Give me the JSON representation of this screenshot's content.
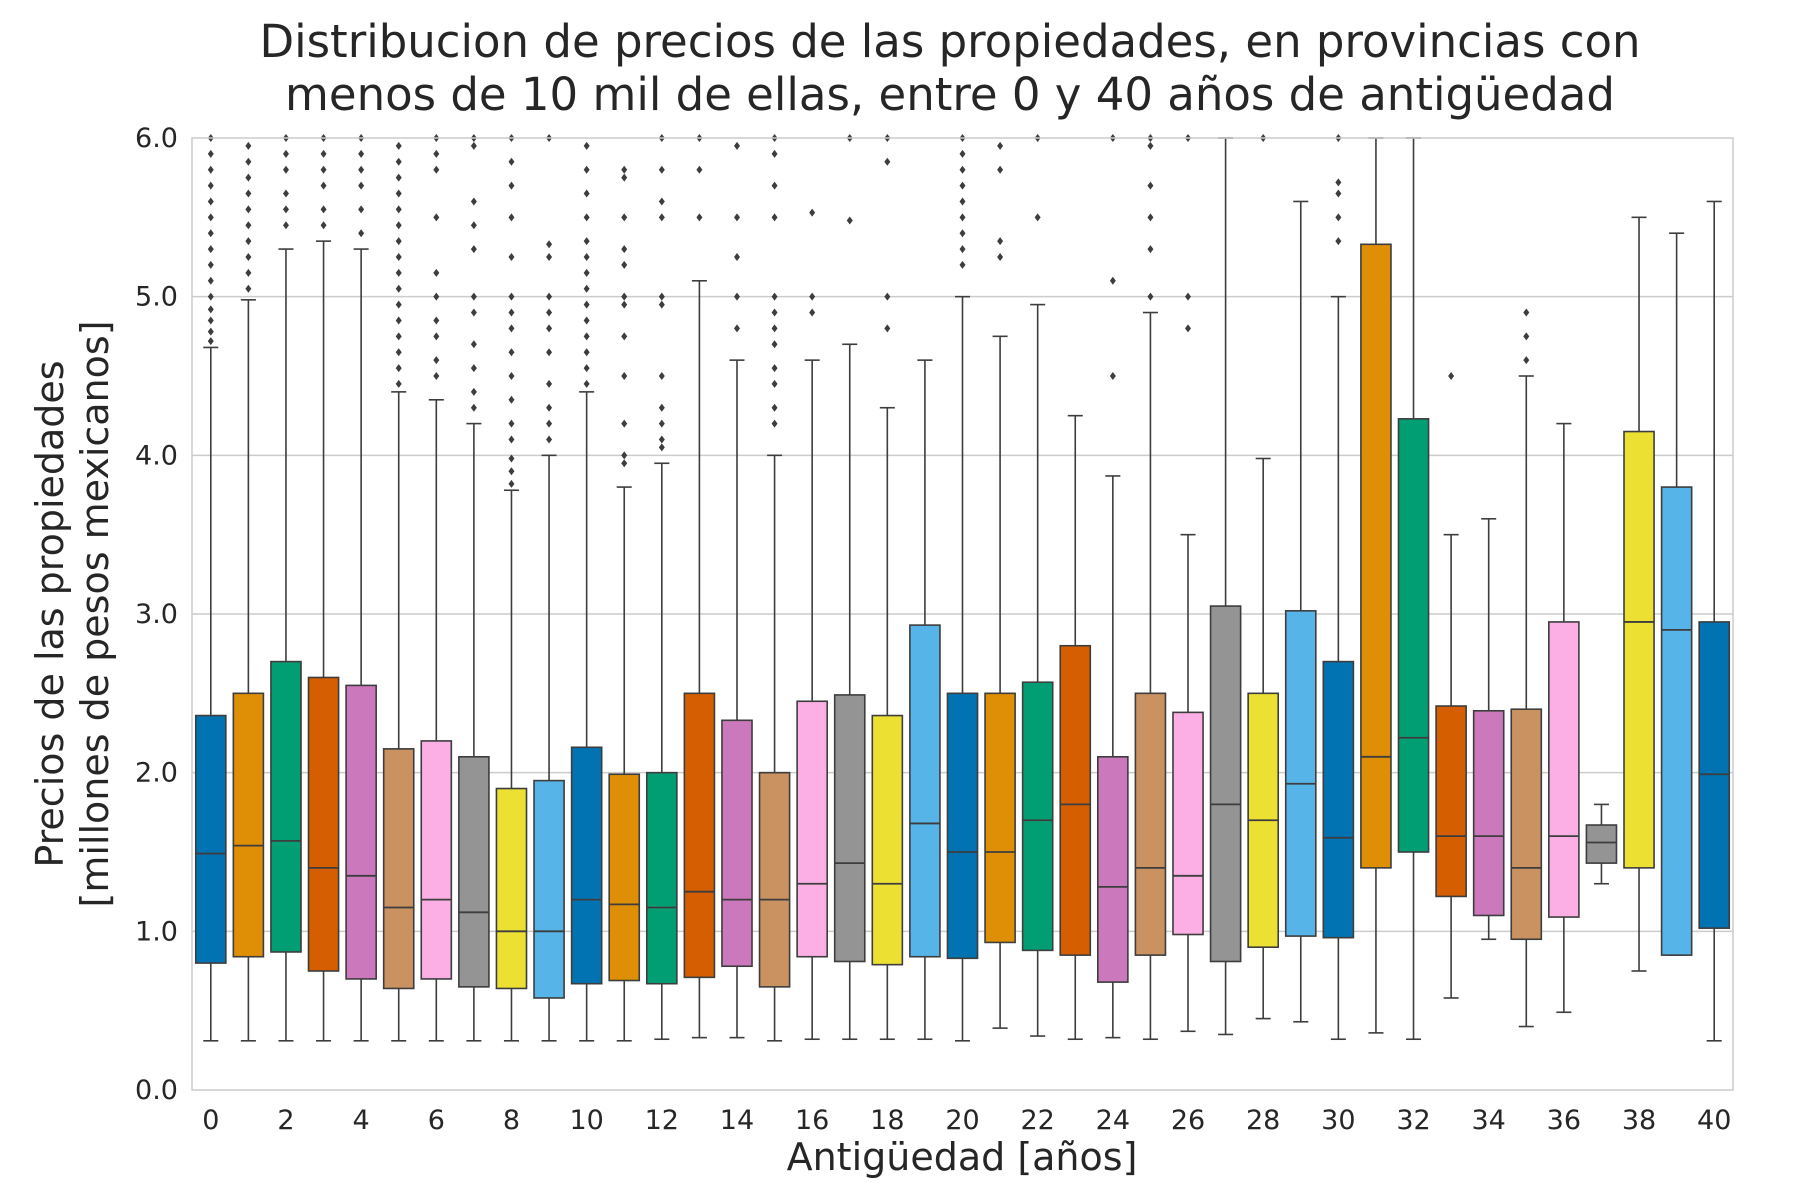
{
  "chart_data": {
    "type": "box",
    "title_lines": [
      "Distribucion de precios de las propiedades, en provincias con",
      "menos de 10 mil de ellas, entre 0 y 40 años de antigüedad"
    ],
    "xlabel": "Antigüedad [años]",
    "ylabel_lines": [
      "Precios de las propiedades",
      "[millones de pesos mexicanos]"
    ],
    "ylim": [
      0,
      6
    ],
    "yticks": [
      "0.0",
      "1.0",
      "2.0",
      "3.0",
      "4.0",
      "5.0",
      "6.0"
    ],
    "ytick_values": [
      0,
      1,
      2,
      3,
      4,
      5,
      6
    ],
    "xtick_labels": [
      "0",
      "2",
      "4",
      "6",
      "8",
      "10",
      "12",
      "14",
      "16",
      "18",
      "20",
      "22",
      "24",
      "26",
      "28",
      "30",
      "32",
      "34",
      "36",
      "38",
      "40"
    ],
    "grid": "horizontal",
    "palette": [
      "#0173b2",
      "#de8f05",
      "#029e73",
      "#d55e00",
      "#cc78bc",
      "#ca9161",
      "#fbafe4",
      "#949494",
      "#ece133",
      "#56b4e9"
    ],
    "boxes": [
      {
        "age": 0,
        "whislo": 0.31,
        "q1": 0.8,
        "med": 1.49,
        "q3": 2.36,
        "whishi": 4.68,
        "fliers": [
          4.72,
          4.78,
          4.85,
          4.92,
          5.0,
          5.1,
          5.2,
          5.3,
          5.4,
          5.5,
          5.6,
          5.7,
          5.8,
          5.9,
          6.0
        ]
      },
      {
        "age": 1,
        "whislo": 0.31,
        "q1": 0.84,
        "med": 1.54,
        "q3": 2.5,
        "whishi": 4.98,
        "fliers": [
          5.05,
          5.15,
          5.25,
          5.35,
          5.45,
          5.55,
          5.65,
          5.75,
          5.85,
          5.95
        ]
      },
      {
        "age": 2,
        "whislo": 0.31,
        "q1": 0.87,
        "med": 1.57,
        "q3": 2.7,
        "whishi": 5.3,
        "fliers": [
          5.45,
          5.55,
          5.65,
          5.8,
          5.9,
          6.0
        ]
      },
      {
        "age": 3,
        "whislo": 0.31,
        "q1": 0.75,
        "med": 1.4,
        "q3": 2.6,
        "whishi": 5.35,
        "fliers": [
          5.45,
          5.55,
          5.7,
          5.8,
          5.9,
          6.0
        ]
      },
      {
        "age": 4,
        "whislo": 0.31,
        "q1": 0.7,
        "med": 1.35,
        "q3": 2.55,
        "whishi": 5.3,
        "fliers": [
          5.4,
          5.55,
          5.7,
          5.8,
          5.9,
          6.0
        ]
      },
      {
        "age": 5,
        "whislo": 0.31,
        "q1": 0.64,
        "med": 1.15,
        "q3": 2.15,
        "whishi": 4.4,
        "fliers": [
          4.45,
          4.55,
          4.65,
          4.75,
          4.85,
          4.95,
          5.05,
          5.15,
          5.25,
          5.35,
          5.45,
          5.55,
          5.65,
          5.75,
          5.85,
          5.95
        ]
      },
      {
        "age": 6,
        "whislo": 0.31,
        "q1": 0.7,
        "med": 1.2,
        "q3": 2.2,
        "whishi": 4.35,
        "fliers": [
          4.5,
          4.6,
          4.75,
          4.85,
          5.0,
          5.15,
          5.5,
          5.8,
          5.9,
          6.0
        ]
      },
      {
        "age": 7,
        "whislo": 0.31,
        "q1": 0.65,
        "med": 1.12,
        "q3": 2.1,
        "whishi": 4.2,
        "fliers": [
          4.3,
          4.4,
          4.55,
          4.7,
          4.9,
          5.0,
          5.3,
          5.45,
          5.6,
          5.95,
          6.0
        ]
      },
      {
        "age": 8,
        "whislo": 0.31,
        "q1": 0.64,
        "med": 1.0,
        "q3": 1.9,
        "whishi": 3.78,
        "fliers": [
          3.82,
          3.9,
          3.98,
          4.1,
          4.2,
          4.35,
          4.5,
          4.65,
          4.8,
          4.9,
          5.0,
          5.25,
          5.5,
          5.7,
          5.85,
          6.0
        ]
      },
      {
        "age": 9,
        "whislo": 0.31,
        "q1": 0.58,
        "med": 1.0,
        "q3": 1.95,
        "whishi": 4.0,
        "fliers": [
          4.1,
          4.2,
          4.3,
          4.45,
          4.65,
          4.8,
          4.9,
          5.0,
          5.25,
          5.33,
          6.0
        ]
      },
      {
        "age": 10,
        "whislo": 0.31,
        "q1": 0.67,
        "med": 1.2,
        "q3": 2.16,
        "whishi": 4.4,
        "fliers": [
          4.45,
          4.55,
          4.65,
          4.75,
          4.85,
          4.95,
          5.05,
          5.15,
          5.25,
          5.35,
          5.5,
          5.65,
          5.8,
          5.95
        ]
      },
      {
        "age": 11,
        "whislo": 0.31,
        "q1": 0.69,
        "med": 1.17,
        "q3": 1.99,
        "whishi": 3.8,
        "fliers": [
          3.95,
          4.0,
          4.2,
          4.5,
          4.75,
          4.95,
          5.0,
          5.2,
          5.3,
          5.5,
          5.75,
          5.8
        ]
      },
      {
        "age": 12,
        "whislo": 0.32,
        "q1": 0.67,
        "med": 1.15,
        "q3": 2.0,
        "whishi": 3.95,
        "fliers": [
          4.05,
          4.1,
          4.2,
          4.3,
          4.5,
          4.95,
          5.0,
          5.5,
          5.6,
          5.8,
          6.0
        ]
      },
      {
        "age": 13,
        "whislo": 0.33,
        "q1": 0.71,
        "med": 1.25,
        "q3": 2.5,
        "whishi": 5.1,
        "fliers": [
          5.5,
          5.8,
          6.0
        ]
      },
      {
        "age": 14,
        "whislo": 0.33,
        "q1": 0.78,
        "med": 1.2,
        "q3": 2.33,
        "whishi": 4.6,
        "fliers": [
          4.8,
          5.0,
          5.25,
          5.5,
          5.95
        ]
      },
      {
        "age": 15,
        "whislo": 0.31,
        "q1": 0.65,
        "med": 1.2,
        "q3": 2.0,
        "whishi": 4.0,
        "fliers": [
          4.2,
          4.3,
          4.45,
          4.55,
          4.7,
          4.8,
          4.9,
          5.0,
          5.5,
          5.7,
          5.9,
          6.0
        ]
      },
      {
        "age": 16,
        "whislo": 0.32,
        "q1": 0.84,
        "med": 1.3,
        "q3": 2.45,
        "whishi": 4.6,
        "fliers": [
          4.9,
          5.0,
          5.53
        ]
      },
      {
        "age": 17,
        "whislo": 0.32,
        "q1": 0.81,
        "med": 1.43,
        "q3": 2.49,
        "whishi": 4.7,
        "fliers": [
          5.48,
          6.0
        ]
      },
      {
        "age": 18,
        "whislo": 0.32,
        "q1": 0.79,
        "med": 1.3,
        "q3": 2.36,
        "whishi": 4.3,
        "fliers": [
          4.8,
          5.0,
          5.85,
          6.0
        ]
      },
      {
        "age": 19,
        "whislo": 0.32,
        "q1": 0.84,
        "med": 1.68,
        "q3": 2.93,
        "whishi": 4.6,
        "fliers": []
      },
      {
        "age": 20,
        "whislo": 0.31,
        "q1": 0.83,
        "med": 1.5,
        "q3": 2.5,
        "whishi": 5.0,
        "fliers": [
          5.2,
          5.3,
          5.4,
          5.5,
          5.6,
          5.7,
          5.8,
          5.9,
          6.0
        ]
      },
      {
        "age": 21,
        "whislo": 0.39,
        "q1": 0.93,
        "med": 1.5,
        "q3": 2.5,
        "whishi": 4.75,
        "fliers": [
          5.25,
          5.35,
          5.8,
          5.95
        ]
      },
      {
        "age": 22,
        "whislo": 0.34,
        "q1": 0.88,
        "med": 1.7,
        "q3": 2.57,
        "whishi": 4.95,
        "fliers": [
          5.5,
          6.0
        ]
      },
      {
        "age": 23,
        "whislo": 0.32,
        "q1": 0.85,
        "med": 1.8,
        "q3": 2.8,
        "whishi": 4.25,
        "fliers": []
      },
      {
        "age": 24,
        "whislo": 0.33,
        "q1": 0.68,
        "med": 1.28,
        "q3": 2.1,
        "whishi": 3.87,
        "fliers": [
          4.5,
          5.1,
          6.0
        ]
      },
      {
        "age": 25,
        "whislo": 0.32,
        "q1": 0.85,
        "med": 1.4,
        "q3": 2.5,
        "whishi": 4.9,
        "fliers": [
          5.0,
          5.3,
          5.5,
          5.7,
          5.95,
          6.0
        ]
      },
      {
        "age": 26,
        "whislo": 0.37,
        "q1": 0.98,
        "med": 1.35,
        "q3": 2.38,
        "whishi": 3.5,
        "fliers": [
          4.8,
          5.0,
          6.0
        ]
      },
      {
        "age": 27,
        "whislo": 0.35,
        "q1": 0.81,
        "med": 1.8,
        "q3": 3.05,
        "whishi": 6.0,
        "fliers": []
      },
      {
        "age": 28,
        "whislo": 0.45,
        "q1": 0.9,
        "med": 1.7,
        "q3": 2.5,
        "whishi": 3.98,
        "fliers": [
          6.0
        ]
      },
      {
        "age": 29,
        "whislo": 0.43,
        "q1": 0.97,
        "med": 1.93,
        "q3": 3.02,
        "whishi": 5.6,
        "fliers": []
      },
      {
        "age": 30,
        "whislo": 0.32,
        "q1": 0.96,
        "med": 1.59,
        "q3": 2.7,
        "whishi": 5.0,
        "fliers": [
          5.35,
          5.5,
          5.65,
          5.72,
          6.0
        ]
      },
      {
        "age": 31,
        "whislo": 0.36,
        "q1": 1.4,
        "med": 2.1,
        "q3": 5.33,
        "whishi": 6.0,
        "fliers": []
      },
      {
        "age": 32,
        "whislo": 0.32,
        "q1": 1.5,
        "med": 2.22,
        "q3": 4.23,
        "whishi": 6.0,
        "fliers": []
      },
      {
        "age": 33,
        "whislo": 0.58,
        "q1": 1.22,
        "med": 1.6,
        "q3": 2.42,
        "whishi": 3.5,
        "fliers": [
          4.5
        ]
      },
      {
        "age": 34,
        "whislo": 0.95,
        "q1": 1.1,
        "med": 1.6,
        "q3": 2.39,
        "whishi": 3.6,
        "fliers": []
      },
      {
        "age": 35,
        "whislo": 0.4,
        "q1": 0.95,
        "med": 1.4,
        "q3": 2.4,
        "whishi": 4.5,
        "fliers": [
          4.6,
          4.75,
          4.9
        ]
      },
      {
        "age": 36,
        "whislo": 0.49,
        "q1": 1.09,
        "med": 1.6,
        "q3": 2.95,
        "whishi": 4.2,
        "fliers": []
      },
      {
        "age": 37,
        "whislo": 1.3,
        "q1": 1.43,
        "med": 1.56,
        "q3": 1.67,
        "whishi": 1.8,
        "fliers": []
      },
      {
        "age": 38,
        "whislo": 0.75,
        "q1": 1.4,
        "med": 2.95,
        "q3": 4.15,
        "whishi": 5.5,
        "fliers": []
      },
      {
        "age": 39,
        "whislo": 0.85,
        "q1": 0.85,
        "med": 2.9,
        "q3": 3.8,
        "whishi": 5.4,
        "fliers": []
      },
      {
        "age": 40,
        "whislo": 0.31,
        "q1": 1.02,
        "med": 1.99,
        "q3": 2.95,
        "whishi": 5.6,
        "fliers": []
      }
    ]
  }
}
